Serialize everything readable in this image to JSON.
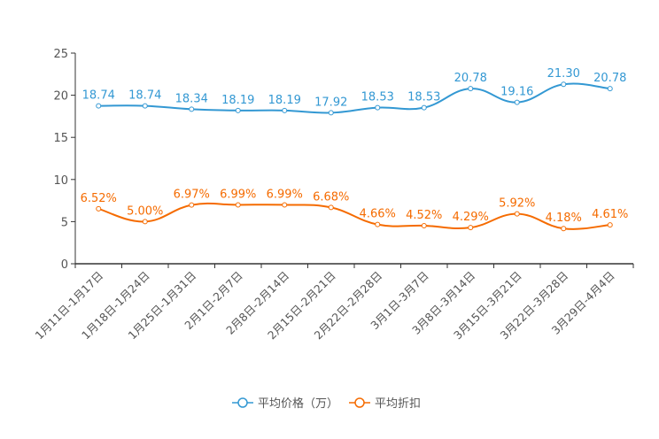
{
  "chart_data": {
    "type": "line",
    "title": "",
    "xlabel": "",
    "ylabel": "",
    "ylim": [
      0,
      25
    ],
    "yticks": [
      0,
      5,
      10,
      15,
      20,
      25
    ],
    "grid": false,
    "legend_position": "bottom-center",
    "categories": [
      "1月11日-1月17日",
      "1月18日-1月24日",
      "1月25日-1月31日",
      "2月1日-2月7日",
      "2月8日-2月14日",
      "2月15日-2月21日",
      "2月22日-2月28日",
      "3月1日-3月7日",
      "3月8日-3月14日",
      "3月15日-3月21日",
      "3月22日-3月28日",
      "3月29日-4月4日"
    ],
    "series": [
      {
        "name": "平均价格（万）",
        "color": "#3398d3",
        "values": [
          18.74,
          18.74,
          18.34,
          18.19,
          18.19,
          17.92,
          18.53,
          18.53,
          20.78,
          19.16,
          21.3,
          20.78
        ],
        "labels": [
          "18.74",
          "18.74",
          "18.34",
          "18.19",
          "18.19",
          "17.92",
          "18.53",
          "18.53",
          "20.78",
          "19.16",
          "21.30",
          "20.78"
        ]
      },
      {
        "name": "平均折扣",
        "color": "#f56b00",
        "values": [
          6.52,
          5.0,
          6.97,
          6.99,
          6.99,
          6.68,
          4.66,
          4.52,
          4.29,
          5.92,
          4.18,
          4.61
        ],
        "labels": [
          "6.52%",
          "5.00%",
          "6.97%",
          "6.99%",
          "6.99%",
          "6.68%",
          "4.66%",
          "4.52%",
          "4.29%",
          "5.92%",
          "4.18%",
          "4.61%"
        ]
      }
    ]
  }
}
